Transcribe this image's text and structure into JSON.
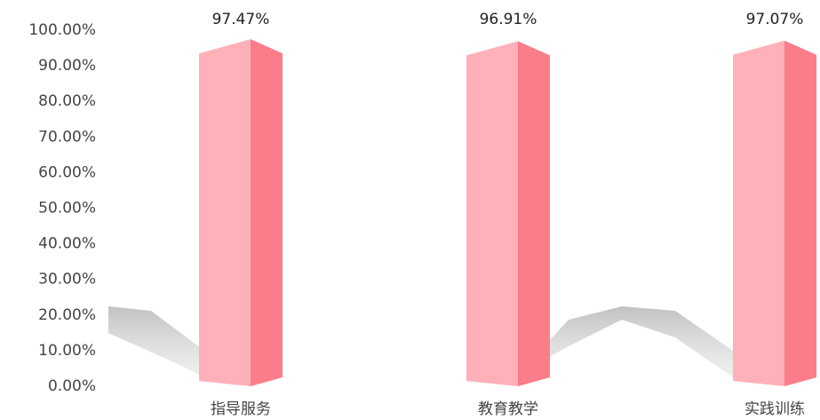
{
  "chart_data": {
    "type": "bar3d",
    "categories": [
      "指导服务",
      "教育教学",
      "实践训练"
    ],
    "values": [
      97.47,
      96.91,
      97.07
    ],
    "value_labels": [
      "97.47%",
      "96.91%",
      "97.07%"
    ],
    "color": "#ffb0b8",
    "side_color": "#fc7d8a",
    "ylim": [
      0,
      100
    ],
    "yticks": [
      {
        "value": 0,
        "label": "0.00%"
      },
      {
        "value": 10,
        "label": "10.00%"
      },
      {
        "value": 20,
        "label": "20.00%"
      },
      {
        "value": 30,
        "label": "30.00%"
      },
      {
        "value": 40,
        "label": "40.00%"
      },
      {
        "value": 50,
        "label": "50.00%"
      },
      {
        "value": 60,
        "label": "60.00%"
      },
      {
        "value": 70,
        "label": "70.00%"
      },
      {
        "value": 80,
        "label": "80.00%"
      },
      {
        "value": 90,
        "label": "90.00%"
      },
      {
        "value": 100,
        "label": "100.00%"
      }
    ],
    "grid": false
  }
}
